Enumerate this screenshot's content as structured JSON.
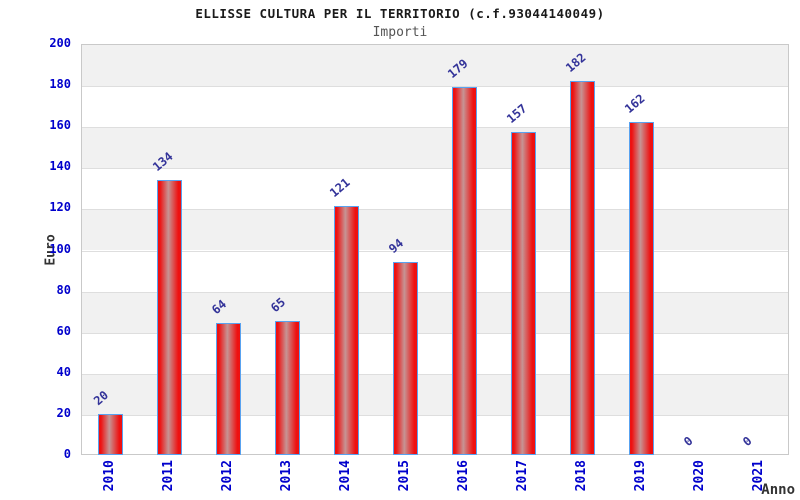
{
  "chart": {
    "title": "ELLISSE CULTURA PER IL TERRITORIO (c.f.93044140049)",
    "subtitle": "Importi",
    "ylabel": "Euro",
    "xlabel": "Anno"
  },
  "chart_data": {
    "type": "bar",
    "title": "ELLISSE CULTURA PER IL TERRITORIO (c.f.93044140049)",
    "subtitle": "Importi",
    "xlabel": "Anno",
    "ylabel": "Euro",
    "categories": [
      "2010",
      "2011",
      "2012",
      "2013",
      "2014",
      "2015",
      "2016",
      "2017",
      "2018",
      "2019",
      "2020",
      "2021"
    ],
    "values": [
      20,
      134,
      64,
      65,
      121,
      94,
      179,
      157,
      182,
      162,
      0,
      0
    ],
    "ylim": [
      0,
      200
    ],
    "yticks": [
      0,
      20,
      40,
      60,
      80,
      100,
      120,
      140,
      160,
      180,
      200
    ],
    "grid": "horizontal-bands",
    "legend": "none",
    "colors": {
      "bar_red": "#ee1111",
      "bar_highlight": "#c69494",
      "bar_border": "#58a2f0",
      "axis_tick_text": "#0000cc",
      "value_label_text": "#333399",
      "band_gray": "#f1f1f1",
      "band_white": "#ffffff",
      "gridline": "#dedede",
      "plot_border": "#c9c9c9"
    }
  }
}
